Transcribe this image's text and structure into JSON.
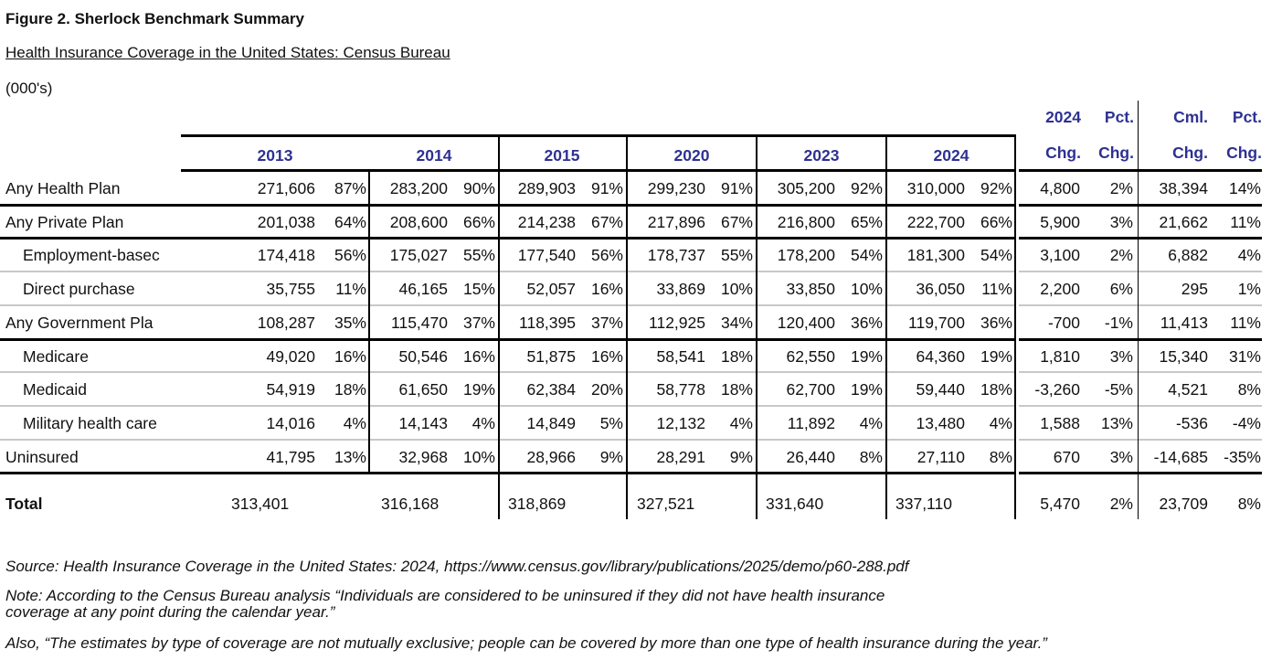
{
  "figure_title": "Figure 2. Sherlock Benchmark Summary",
  "subtitle": "Health Insurance Coverage in the United States: Census Bureau",
  "units": "(000's)",
  "header": {
    "years": [
      "2013",
      "2014",
      "2015",
      "2020",
      "2023",
      "2024"
    ],
    "chg_top": "2024",
    "chg_bottom": "Chg.",
    "pct_top": "Pct.",
    "pct_bottom": "Chg.",
    "cml_top": "Cml.",
    "cml_bottom": "Chg.",
    "cmlpct_top": "Pct.",
    "cmlpct_bottom": "Chg."
  },
  "header_color": "#2e3192",
  "rows": [
    {
      "label": "Any Health Plan",
      "indent": false,
      "values": [
        "271,606",
        "87%",
        "283,200",
        "90%",
        "289,903",
        "91%",
        "299,230",
        "91%",
        "305,200",
        "92%",
        "310,000",
        "92%",
        "4,800",
        "2%",
        "38,394",
        "14%"
      ]
    },
    {
      "label": "Any Private Plan",
      "indent": false,
      "values": [
        "201,038",
        "64%",
        "208,600",
        "66%",
        "214,238",
        "67%",
        "217,896",
        "67%",
        "216,800",
        "65%",
        "222,700",
        "66%",
        "5,900",
        "3%",
        "21,662",
        "11%"
      ]
    },
    {
      "label": "Employment-basec",
      "indent": true,
      "values": [
        "174,418",
        "56%",
        "175,027",
        "55%",
        "177,540",
        "56%",
        "178,737",
        "55%",
        "178,200",
        "54%",
        "181,300",
        "54%",
        "3,100",
        "2%",
        "6,882",
        "4%"
      ]
    },
    {
      "label": "Direct purchase",
      "indent": true,
      "values": [
        "35,755",
        "11%",
        "46,165",
        "15%",
        "52,057",
        "16%",
        "33,869",
        "10%",
        "33,850",
        "10%",
        "36,050",
        "11%",
        "2,200",
        "6%",
        "295",
        "1%"
      ]
    },
    {
      "label": "Any Government Pla",
      "indent": false,
      "values": [
        "108,287",
        "35%",
        "115,470",
        "37%",
        "118,395",
        "37%",
        "112,925",
        "34%",
        "120,400",
        "36%",
        "119,700",
        "36%",
        "-700",
        "-1%",
        "11,413",
        "11%"
      ]
    },
    {
      "label": "Medicare",
      "indent": true,
      "values": [
        "49,020",
        "16%",
        "50,546",
        "16%",
        "51,875",
        "16%",
        "58,541",
        "18%",
        "62,550",
        "19%",
        "64,360",
        "19%",
        "1,810",
        "3%",
        "15,340",
        "31%"
      ]
    },
    {
      "label": "Medicaid",
      "indent": true,
      "values": [
        "54,919",
        "18%",
        "61,650",
        "19%",
        "62,384",
        "20%",
        "58,778",
        "18%",
        "62,700",
        "19%",
        "59,440",
        "18%",
        "-3,260",
        "-5%",
        "4,521",
        "8%"
      ]
    },
    {
      "label": "Military health care",
      "indent": true,
      "values": [
        "14,016",
        "4%",
        "14,143",
        "4%",
        "14,849",
        "5%",
        "12,132",
        "4%",
        "11,892",
        "4%",
        "13,480",
        "4%",
        "1,588",
        "13%",
        "-536",
        "-4%"
      ]
    },
    {
      "label": "Uninsured",
      "indent": false,
      "values": [
        "41,795",
        "13%",
        "32,968",
        "10%",
        "28,966",
        "9%",
        "28,291",
        "9%",
        "26,440",
        "8%",
        "27,110",
        "8%",
        "670",
        "3%",
        "-14,685",
        "-35%"
      ]
    }
  ],
  "total": {
    "label": "Total",
    "values": [
      "313,401",
      "316,168",
      "318,869",
      "327,521",
      "331,640",
      "337,110",
      "5,470",
      "2%",
      "23,709",
      "8%"
    ]
  },
  "notes": {
    "source": "Source: Health Insurance Coverage in the United States: 2024, https://www.census.gov/library/publications/2025/demo/p60-288.pdf",
    "note1": "Note: According to the Census Bureau analysis “Individuals are considered to be uninsured if they did not have health insurance",
    "note2": "coverage at any point during the calendar year.”",
    "note3": "Also, “The estimates by type of coverage are not mutually exclusive; people can be covered by more than one type of health insurance during the year.”"
  }
}
